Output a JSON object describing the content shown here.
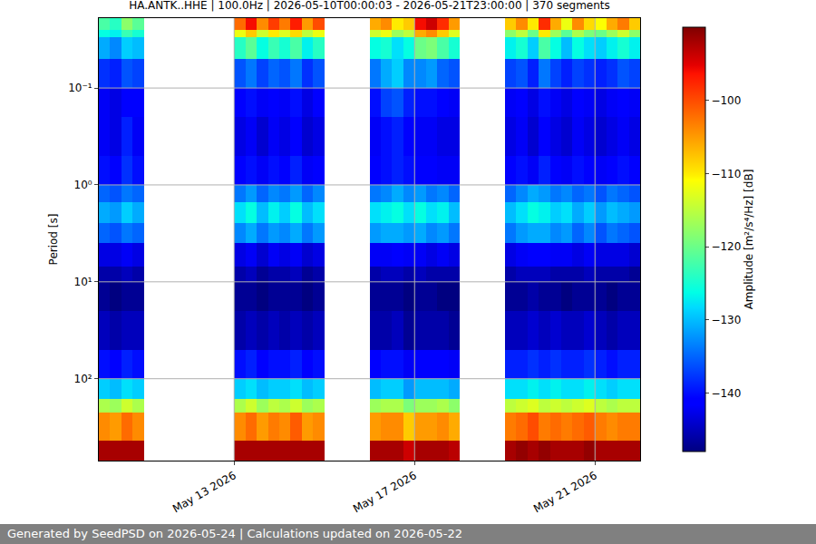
{
  "chart_data": {
    "type": "heatmap",
    "title": "HA.ANTK..HHE | 100.0Hz | 2026-05-10T00:00:03 - 2026-05-21T23:00:00 | 370 segments",
    "y_label": "Period [s]",
    "colorbar_label": "Amplitude [m²/s⁴/Hz] [dB]",
    "annotations": [
      "Generated by SeedPSD on 2026-05-24 | Calculations updated on 2026-05-22"
    ],
    "log": "y",
    "grid": true,
    "color": "jet",
    "xlim": [
      "2026-05-10 00:00",
      "2026-05-22 00:00"
    ],
    "xticks": [
      {
        "value": "2026-05-13 00:00",
        "label": "May 13 2026"
      },
      {
        "value": "2026-05-17 00:00",
        "label": "May 17 2026"
      },
      {
        "value": "2026-05-21 00:00",
        "label": "May 21 2026"
      }
    ],
    "ylim": [
      700,
      0.019
    ],
    "yticks": [
      {
        "value": 0.1,
        "label": "10⁻¹"
      },
      {
        "value": 1,
        "label": "10⁰"
      },
      {
        "value": 10,
        "label": "10¹"
      },
      {
        "value": 100,
        "label": "10²"
      }
    ],
    "zlim": [
      -148,
      -90
    ],
    "zticks": [
      {
        "value": -100,
        "label": "−100"
      },
      {
        "value": -110,
        "label": "−110"
      },
      {
        "value": -120,
        "label": "−120"
      },
      {
        "value": -130,
        "label": "−130"
      },
      {
        "value": -140,
        "label": "−140"
      }
    ],
    "x": [
      "2026-05-10 00:00",
      "2026-05-10 06:00",
      "2026-05-10 12:00",
      "2026-05-10 18:00",
      "2026-05-11 00:00",
      "2026-05-13 00:00",
      "2026-05-13 06:00",
      "2026-05-13 12:00",
      "2026-05-13 18:00",
      "2026-05-14 00:00",
      "2026-05-14 06:00",
      "2026-05-14 12:00",
      "2026-05-14 18:00",
      "2026-05-15 00:00",
      "2026-05-16 00:00",
      "2026-05-16 06:00",
      "2026-05-16 12:00",
      "2026-05-16 18:00",
      "2026-05-17 00:00",
      "2026-05-17 06:00",
      "2026-05-17 12:00",
      "2026-05-17 18:00",
      "2026-05-18 00:00",
      "2026-05-19 00:00",
      "2026-05-19 06:00",
      "2026-05-19 12:00",
      "2026-05-19 18:00",
      "2026-05-20 00:00",
      "2026-05-20 06:00",
      "2026-05-20 12:00",
      "2026-05-20 18:00",
      "2026-05-21 00:00",
      "2026-05-21 06:00",
      "2026-05-21 12:00",
      "2026-05-21 18:00",
      "2026-05-22 00:00"
    ],
    "y": [
      0.019,
      0.025,
      0.03,
      0.05,
      0.1,
      0.2,
      0.5,
      1,
      1.5,
      2.5,
      4,
      7,
      10,
      20,
      50,
      100,
      160,
      225,
      440,
      700
    ],
    "z": [
      [
        -122,
        -124,
        -118,
        -121,
        null,
        -102,
        -96,
        -104,
        -99,
        -103,
        -97,
        -105,
        -100,
        null,
        -106,
        -104,
        -110,
        -108,
        -96,
        -94,
        -98,
        -105,
        null,
        -108,
        -104,
        -110,
        -98,
        -106,
        -112,
        -104,
        -109,
        -111,
        -106,
        -103,
        -108
      ],
      [
        -126,
        -127,
        -123,
        -125,
        null,
        -112,
        -108,
        -114,
        -110,
        -113,
        -109,
        -115,
        -112,
        null,
        -114,
        -112,
        -117,
        -115,
        -106,
        -104,
        -108,
        -113,
        null,
        -118,
        -115,
        -120,
        -110,
        -117,
        -121,
        -116,
        -119,
        -120,
        -117,
        -114,
        -118
      ],
      [
        -131,
        -133,
        -129,
        -130,
        null,
        -124,
        -121,
        -126,
        -123,
        -125,
        -122,
        -127,
        -124,
        null,
        -126,
        -125,
        -128,
        -126,
        -120,
        -119,
        -122,
        -125,
        null,
        -127,
        -125,
        -129,
        -122,
        -126,
        -130,
        -126,
        -128,
        -129,
        -127,
        -125,
        -127
      ],
      [
        -138,
        -139,
        -136,
        -137,
        null,
        -136,
        -134,
        -137,
        -135,
        -136,
        -134,
        -138,
        -136,
        null,
        -134,
        -131,
        -129,
        -133,
        -133,
        -132,
        -135,
        -136,
        null,
        -137,
        -136,
        -139,
        -134,
        -137,
        -139,
        -137,
        -138,
        -139,
        -138,
        -136,
        -137
      ],
      [
        -142,
        -143,
        -141,
        -141,
        null,
        -141,
        -140,
        -142,
        -141,
        -142,
        -140,
        -143,
        -141,
        null,
        -140,
        -137,
        -136,
        -139,
        -140,
        -140,
        -141,
        -142,
        null,
        -142,
        -141,
        -143,
        -140,
        -142,
        -143,
        -141,
        -142,
        -143,
        -142,
        -141,
        -142
      ],
      [
        -142,
        -143,
        -139,
        -142,
        null,
        -143,
        -142,
        -144,
        -142,
        -143,
        -141,
        -144,
        -143,
        null,
        -142,
        -140,
        -139,
        -141,
        -142,
        -142,
        -143,
        -143,
        null,
        -143,
        -142,
        -144,
        -141,
        -143,
        -144,
        -142,
        -143,
        -144,
        -143,
        -142,
        -143
      ],
      [
        -140,
        -141,
        -138,
        -140,
        null,
        -141,
        -140,
        -142,
        -140,
        -141,
        -139,
        -142,
        -141,
        null,
        -141,
        -140,
        -139,
        -140,
        -141,
        -141,
        -142,
        -142,
        null,
        -141,
        -140,
        -142,
        -139,
        -141,
        -142,
        -140,
        -141,
        -142,
        -141,
        -140,
        -141
      ],
      [
        -135,
        -136,
        -134,
        -135,
        null,
        -134,
        -132,
        -135,
        -133,
        -134,
        -132,
        -135,
        -133,
        null,
        -134,
        -133,
        -131,
        -133,
        -132,
        -134,
        -133,
        -135,
        null,
        -135,
        -133,
        -131,
        -132,
        -134,
        -133,
        -135,
        -134,
        -136,
        -134,
        -135,
        -136
      ],
      [
        -131,
        -132,
        -129,
        -131,
        null,
        -128,
        -126,
        -130,
        -127,
        -129,
        -126,
        -130,
        -128,
        null,
        -128,
        -127,
        -126,
        -128,
        -126,
        -128,
        -127,
        -130,
        null,
        -130,
        -128,
        -126,
        -127,
        -129,
        -128,
        -131,
        -129,
        -132,
        -130,
        -131,
        -132
      ],
      [
        -135,
        -136,
        -134,
        -135,
        null,
        -133,
        -131,
        -134,
        -132,
        -133,
        -131,
        -134,
        -132,
        null,
        -132,
        -131,
        -131,
        -132,
        -131,
        -133,
        -132,
        -134,
        null,
        -134,
        -132,
        -131,
        -131,
        -133,
        -132,
        -135,
        -133,
        -136,
        -134,
        -135,
        -136
      ],
      [
        -143,
        -143,
        -142,
        -143,
        null,
        -143,
        -142,
        -144,
        -142,
        -143,
        -142,
        -144,
        -143,
        null,
        -142,
        -142,
        -141,
        -142,
        -142,
        -143,
        -142,
        -143,
        null,
        -143,
        -142,
        -141,
        -141,
        -142,
        -142,
        -143,
        -142,
        -143,
        -143,
        -143,
        -144
      ],
      [
        -146,
        -146,
        -145,
        -146,
        null,
        -146,
        -145,
        -147,
        -146,
        -146,
        -145,
        -147,
        -146,
        null,
        -146,
        -145,
        -145,
        -146,
        -145,
        -146,
        -146,
        -146,
        null,
        -146,
        -145,
        -145,
        -145,
        -146,
        -146,
        -146,
        -145,
        -146,
        -146,
        -146,
        -147
      ],
      [
        -147,
        -148,
        -147,
        -147,
        null,
        -147,
        -147,
        -148,
        -147,
        -147,
        -147,
        -148,
        -147,
        null,
        -147,
        -147,
        -147,
        -148,
        -147,
        -147,
        -148,
        -148,
        null,
        -147,
        -147,
        -146,
        -147,
        -147,
        -148,
        -147,
        -147,
        -147,
        -148,
        -147,
        -147
      ],
      [
        -145,
        -146,
        -145,
        -145,
        null,
        -146,
        -145,
        -146,
        -145,
        -146,
        -145,
        -146,
        -145,
        null,
        -146,
        -146,
        -145,
        -147,
        -146,
        -146,
        -146,
        -147,
        null,
        -145,
        -145,
        -144,
        -145,
        -144,
        -145,
        -145,
        -144,
        -145,
        -146,
        -145,
        -145
      ],
      [
        -140,
        -141,
        -139,
        -140,
        null,
        -140,
        -139,
        -141,
        -140,
        -140,
        -139,
        -141,
        -140,
        null,
        -141,
        -140,
        -140,
        -142,
        -141,
        -141,
        -141,
        -142,
        null,
        -139,
        -139,
        -138,
        -139,
        -138,
        -139,
        -139,
        -138,
        -139,
        -140,
        -139,
        -139
      ],
      [
        -129,
        -130,
        -128,
        -129,
        null,
        -129,
        -128,
        -130,
        -129,
        -129,
        -128,
        -130,
        -129,
        null,
        -130,
        -129,
        -129,
        -132,
        -130,
        -130,
        -130,
        -131,
        null,
        -128,
        -128,
        -127,
        -128,
        -127,
        -128,
        -128,
        -127,
        -128,
        -129,
        -128,
        -128
      ],
      [
        -116,
        -117,
        -114,
        -116,
        null,
        -116,
        -114,
        -117,
        -115,
        -116,
        -114,
        -117,
        -116,
        null,
        -117,
        -116,
        -116,
        -119,
        -117,
        -117,
        -116,
        -118,
        null,
        -115,
        -114,
        -113,
        -115,
        -114,
        -115,
        -114,
        -113,
        -115,
        -116,
        -115,
        -115
      ],
      [
        -104,
        -105,
        -102,
        -104,
        null,
        -104,
        -102,
        -105,
        -103,
        -104,
        -101,
        -105,
        -104,
        null,
        -105,
        -104,
        -104,
        -108,
        -105,
        -105,
        -104,
        -106,
        null,
        -103,
        -102,
        -100,
        -103,
        -102,
        -103,
        -102,
        -101,
        -103,
        -104,
        -103,
        -103
      ],
      [
        -92,
        -92,
        -92,
        -92,
        null,
        -92,
        -92,
        -92,
        -92,
        -92,
        -92,
        -92,
        -92,
        null,
        -92,
        -92,
        -92,
        -94,
        -92,
        -92,
        -92,
        -93,
        null,
        -92,
        -91,
        -92,
        -91,
        -92,
        -92,
        -92,
        -91,
        -92,
        -92,
        -92,
        -92
      ]
    ]
  }
}
